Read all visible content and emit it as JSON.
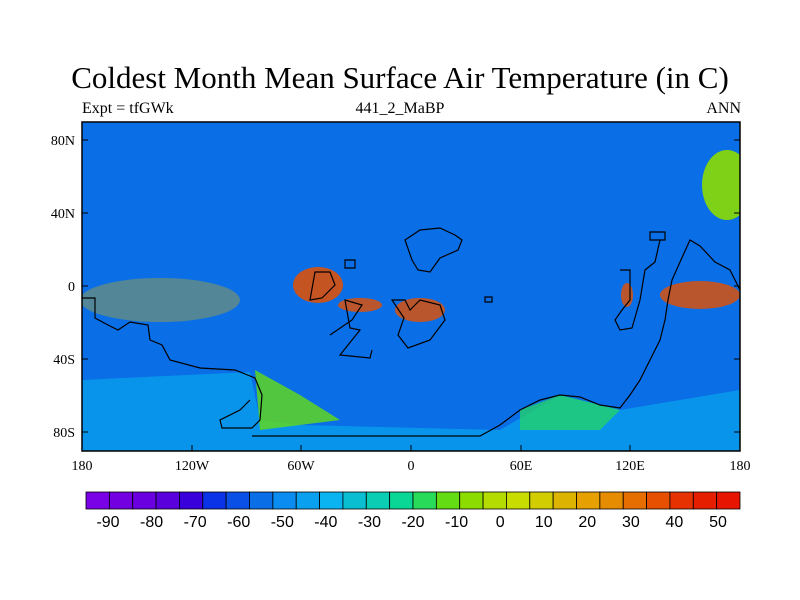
{
  "title": "Coldest Month Mean Surface Air Temperature (in C)",
  "subtitle_left": "Expt = tfGWk",
  "subtitle_center": "441_2_MaBP",
  "subtitle_right": "ANN",
  "lon_ticks": [
    "180",
    "120W",
    "60W",
    "0",
    "60E",
    "120E",
    "180"
  ],
  "lat_ticks": [
    "80N",
    "40N",
    "0",
    "40S",
    "80S"
  ],
  "colorbar": {
    "labels": [
      "-90",
      "-80",
      "-70",
      "-60",
      "-50",
      "-40",
      "-30",
      "-20",
      "-10",
      "0",
      "10",
      "20",
      "30",
      "40",
      "50"
    ],
    "colors": [
      "#7a00e6",
      "#7300e0",
      "#6a00e0",
      "#5a00dc",
      "#3a00dc",
      "#0a32e6",
      "#0a50e6",
      "#0a6ee6",
      "#0a8cf0",
      "#0aa0f0",
      "#0ab4f0",
      "#0abed2",
      "#0acdb4",
      "#0ad796",
      "#28dc5a",
      "#64dc14",
      "#8cdc00",
      "#b4dc00",
      "#c8dc00",
      "#d2cd00",
      "#dcb400",
      "#e6a000",
      "#e68c00",
      "#e66e00",
      "#e65000",
      "#e63200",
      "#e61e00",
      "#e61400"
    ]
  }
}
